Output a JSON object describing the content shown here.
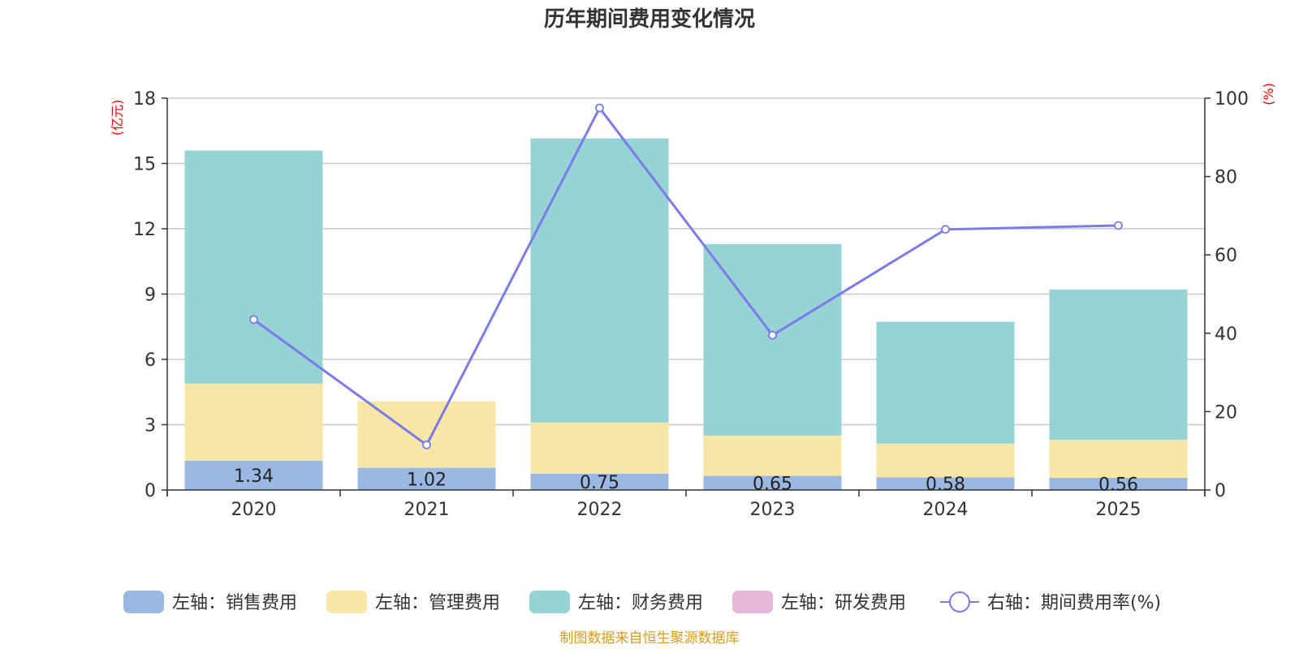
{
  "title": "历年期间费用变化情况",
  "source": "制图数据来自恒生聚源数据库",
  "left_unit": "(亿元)",
  "right_unit": "(%)",
  "chart_data": {
    "type": "bar",
    "stacked": true,
    "title": "历年期间费用变化情况",
    "categories": [
      "2020",
      "2021",
      "2022",
      "2023",
      "2024",
      "2025"
    ],
    "left_axis": {
      "unit": "(亿元)",
      "ylim": [
        0,
        18
      ],
      "ticks": [
        0,
        3,
        6,
        9,
        12,
        15,
        18
      ]
    },
    "right_axis": {
      "unit": "(%)",
      "ylim": [
        0,
        100
      ],
      "ticks": [
        0,
        20,
        40,
        60,
        80,
        100
      ]
    },
    "series": [
      {
        "name": "左轴：销售费用",
        "type": "bar",
        "axis": "left",
        "color": "#9bb8e3",
        "values": [
          1.34,
          1.02,
          0.75,
          0.65,
          0.58,
          0.56
        ],
        "labels": [
          "1.34",
          "1.02",
          "0.75",
          "0.65",
          "0.58",
          "0.56"
        ]
      },
      {
        "name": "左轴：管理费用",
        "type": "bar",
        "axis": "left",
        "color": "#f7e6a6",
        "values": [
          3.55,
          3.05,
          2.35,
          1.85,
          1.55,
          1.75
        ]
      },
      {
        "name": "左轴：财务费用",
        "type": "bar",
        "axis": "left",
        "color": "#96d3d4",
        "values": [
          10.7,
          0,
          13.05,
          8.8,
          5.6,
          6.9
        ]
      },
      {
        "name": "左轴：研发费用",
        "type": "bar",
        "axis": "left",
        "color": "#e7b7da",
        "values": [
          0,
          0,
          0,
          0,
          0,
          0
        ]
      },
      {
        "name": "右轴：期间费用率(%)",
        "type": "line",
        "axis": "right",
        "color": "#7b7bea",
        "values": [
          43.5,
          11.5,
          97.5,
          39.5,
          66.5,
          67.5
        ]
      }
    ],
    "grid": true,
    "legend_position": "bottom"
  }
}
